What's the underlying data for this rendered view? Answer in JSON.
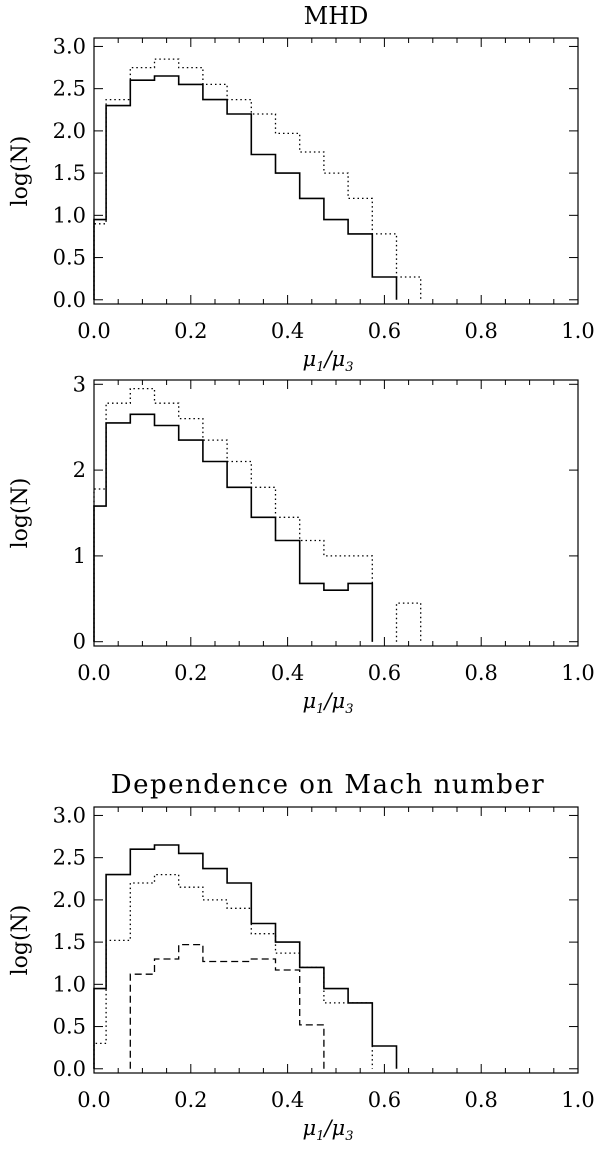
{
  "chart_data": [
    {
      "type": "step",
      "title": "MHD",
      "xlabel": "μ1/μ3",
      "ylabel": "log(N)",
      "xlim": [
        0,
        1
      ],
      "ylim": [
        -0.05,
        3.1
      ],
      "xticks": [
        "0.0",
        "0.2",
        "0.4",
        "0.6",
        "0.8",
        "1.0"
      ],
      "yticks": [
        "0.0",
        "0.5",
        "1.0",
        "1.5",
        "2.0",
        "2.5",
        "3.0"
      ],
      "xtick_values": [
        0,
        0.2,
        0.4,
        0.6,
        0.8,
        1.0
      ],
      "ytick_values": [
        0,
        0.5,
        1.0,
        1.5,
        2.0,
        2.5,
        3.0
      ],
      "bin_edges": [
        0,
        0.025,
        0.075,
        0.125,
        0.175,
        0.225,
        0.275,
        0.325,
        0.375,
        0.425,
        0.475,
        0.525,
        0.575,
        0.625,
        0.675
      ],
      "series": [
        {
          "style": "solid",
          "values": [
            0.95,
            2.3,
            2.6,
            2.65,
            2.55,
            2.37,
            2.2,
            1.72,
            1.5,
            1.2,
            0.95,
            0.78,
            0.27,
            null
          ]
        },
        {
          "style": "dotted",
          "values": [
            0.9,
            2.37,
            2.75,
            2.85,
            2.75,
            2.55,
            2.37,
            2.2,
            1.97,
            1.75,
            1.5,
            1.2,
            0.78,
            0.27
          ]
        }
      ]
    },
    {
      "type": "step",
      "title": "",
      "xlabel": "μ1/μ3",
      "ylabel": "log(N)",
      "xlim": [
        0,
        1
      ],
      "ylim": [
        -0.05,
        3.05
      ],
      "xticks": [
        "0.0",
        "0.2",
        "0.4",
        "0.6",
        "0.8",
        "1.0"
      ],
      "yticks": [
        "0",
        "1",
        "2",
        "3"
      ],
      "xtick_values": [
        0,
        0.2,
        0.4,
        0.6,
        0.8,
        1.0
      ],
      "ytick_values": [
        0,
        1,
        2,
        3
      ],
      "bin_edges": [
        0,
        0.025,
        0.075,
        0.125,
        0.175,
        0.225,
        0.275,
        0.325,
        0.375,
        0.425,
        0.475,
        0.525,
        0.575,
        0.625,
        0.675
      ],
      "series": [
        {
          "style": "solid",
          "values": [
            1.58,
            2.55,
            2.65,
            2.52,
            2.35,
            2.1,
            1.8,
            1.45,
            1.18,
            0.68,
            0.6,
            0.68,
            null,
            null
          ]
        },
        {
          "style": "dotted",
          "values": [
            1.78,
            2.78,
            2.95,
            2.78,
            2.6,
            2.35,
            2.1,
            1.8,
            1.45,
            1.18,
            1.0,
            1.0,
            null,
            0.45
          ]
        }
      ]
    },
    {
      "type": "step",
      "title": "Dependence on Mach number",
      "xlabel": "μ1/μ3",
      "ylabel": "log(N)",
      "xlim": [
        0,
        1
      ],
      "ylim": [
        -0.05,
        3.1
      ],
      "xticks": [
        "0.0",
        "0.2",
        "0.4",
        "0.6",
        "0.8",
        "1.0"
      ],
      "yticks": [
        "0.0",
        "0.5",
        "1.0",
        "1.5",
        "2.0",
        "2.5",
        "3.0"
      ],
      "xtick_values": [
        0,
        0.2,
        0.4,
        0.6,
        0.8,
        1.0
      ],
      "ytick_values": [
        0,
        0.5,
        1.0,
        1.5,
        2.0,
        2.5,
        3.0
      ],
      "bin_edges": [
        0,
        0.025,
        0.075,
        0.125,
        0.175,
        0.225,
        0.275,
        0.325,
        0.375,
        0.425,
        0.475,
        0.525,
        0.575,
        0.625,
        0.675
      ],
      "series": [
        {
          "style": "solid",
          "values": [
            0.95,
            2.3,
            2.6,
            2.65,
            2.55,
            2.37,
            2.2,
            1.72,
            1.5,
            1.2,
            0.95,
            0.78,
            0.27,
            null
          ]
        },
        {
          "style": "dotted",
          "values": [
            0.3,
            1.52,
            2.2,
            2.3,
            2.15,
            2.0,
            1.9,
            1.6,
            1.37,
            1.2,
            0.78,
            0.78,
            null,
            null
          ]
        },
        {
          "style": "dashed",
          "values": [
            null,
            null,
            1.12,
            1.3,
            1.47,
            1.27,
            1.27,
            1.3,
            1.17,
            0.52,
            null,
            null,
            null,
            null
          ]
        }
      ]
    }
  ]
}
